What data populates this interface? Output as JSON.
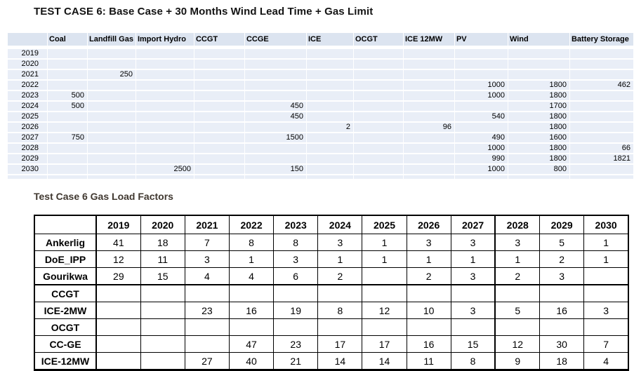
{
  "top": {
    "title": "TEST CASE 6: Base Case + 30 Months Wind Lead Time + Gas Limit",
    "table": {
      "columns": [
        "",
        "Coal",
        "Landfill Gas",
        "Import Hydro",
        "CCGT",
        "CCGE",
        "ICE",
        "OCGT",
        "ICE 12MW",
        "PV",
        "Wind",
        "Battery Storage"
      ],
      "rows": [
        {
          "year": "2019",
          "values": [
            "",
            "",
            "",
            "",
            "",
            "",
            "",
            "",
            "",
            "",
            ""
          ]
        },
        {
          "year": "2020",
          "values": [
            "",
            "",
            "",
            "",
            "",
            "",
            "",
            "",
            "",
            "",
            ""
          ]
        },
        {
          "year": "2021",
          "values": [
            "",
            "250",
            "",
            "",
            "",
            "",
            "",
            "",
            "",
            "",
            ""
          ]
        },
        {
          "year": "2022",
          "values": [
            "",
            "",
            "",
            "",
            "",
            "",
            "",
            "",
            "1000",
            "1800",
            "462"
          ]
        },
        {
          "year": "2023",
          "values": [
            "500",
            "",
            "",
            "",
            "",
            "",
            "",
            "",
            "1000",
            "1800",
            ""
          ]
        },
        {
          "year": "2024",
          "values": [
            "500",
            "",
            "",
            "",
            "450",
            "",
            "",
            "",
            "",
            "1700",
            ""
          ]
        },
        {
          "year": "2025",
          "values": [
            "",
            "",
            "",
            "",
            "450",
            "",
            "",
            "",
            "540",
            "1800",
            ""
          ]
        },
        {
          "year": "2026",
          "values": [
            "",
            "",
            "",
            "",
            "",
            "2",
            "",
            "96",
            "",
            "1800",
            ""
          ]
        },
        {
          "year": "2027",
          "values": [
            "750",
            "",
            "",
            "",
            "1500",
            "",
            "",
            "",
            "490",
            "1600",
            ""
          ]
        },
        {
          "year": "2028",
          "values": [
            "",
            "",
            "",
            "",
            "",
            "",
            "",
            "",
            "1000",
            "1800",
            "66"
          ]
        },
        {
          "year": "2029",
          "values": [
            "",
            "",
            "",
            "",
            "",
            "",
            "",
            "",
            "990",
            "1800",
            "1821"
          ]
        },
        {
          "year": "2030",
          "values": [
            "",
            "",
            "2500",
            "",
            "150",
            "",
            "",
            "",
            "1000",
            "800",
            ""
          ]
        }
      ]
    },
    "colors": {
      "header_bg": "#dce4f0",
      "row_bg": "#e9eef7"
    }
  },
  "bottom": {
    "title": "Test Case 6 Gas Load Factors",
    "title_color": "#403830",
    "table": {
      "columns": [
        "",
        "2019",
        "2020",
        "2021",
        "2022",
        "2023",
        "2024",
        "2025",
        "2026",
        "2027",
        "2028",
        "2029",
        "2030"
      ],
      "rows": [
        {
          "label": "Ankerlig",
          "values": [
            "41",
            "18",
            "7",
            "8",
            "8",
            "3",
            "1",
            "3",
            "3",
            "3",
            "5",
            "1"
          ]
        },
        {
          "label": "DoE_IPP",
          "values": [
            "12",
            "11",
            "3",
            "1",
            "3",
            "1",
            "1",
            "1",
            "1",
            "1",
            "2",
            "1"
          ]
        },
        {
          "label": "Gourikwa",
          "values": [
            "29",
            "15",
            "4",
            "4",
            "6",
            "2",
            "",
            "2",
            "3",
            "2",
            "3",
            ""
          ]
        },
        {
          "label": "CCGT",
          "values": [
            "",
            "",
            "",
            "",
            "",
            "",
            "",
            "",
            "",
            "",
            "",
            ""
          ]
        },
        {
          "label": "ICE-2MW",
          "values": [
            "",
            "",
            "23",
            "16",
            "19",
            "8",
            "12",
            "10",
            "3",
            "5",
            "16",
            "3"
          ]
        },
        {
          "label": "OCGT",
          "values": [
            "",
            "",
            "",
            "",
            "",
            "",
            "",
            "",
            "",
            "",
            "",
            ""
          ]
        },
        {
          "label": "CC-GE",
          "values": [
            "",
            "",
            "",
            "47",
            "23",
            "17",
            "17",
            "16",
            "15",
            "12",
            "30",
            "7"
          ]
        },
        {
          "label": "ICE-12MW",
          "values": [
            "",
            "",
            "27",
            "40",
            "21",
            "14",
            "14",
            "11",
            "8",
            "9",
            "18",
            "4"
          ]
        }
      ]
    }
  }
}
